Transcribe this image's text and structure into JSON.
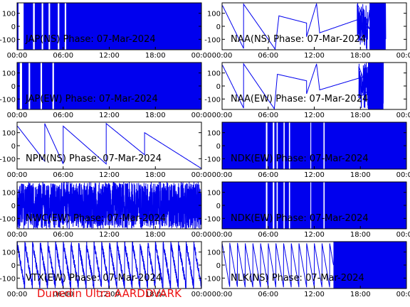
{
  "footer": {
    "text": "Dunedin Ultra AARDDVARK",
    "color": "#ee1111"
  },
  "styles": {
    "trace_color": "#0000ee",
    "frame_color": "#000000",
    "label_color": "#000000"
  },
  "chart_data": [
    {
      "type": "line",
      "title": "JAP(NS) Phase: 07-Mar-2024",
      "ylim": [
        -180,
        180
      ],
      "yticks": [
        100,
        0,
        -100
      ],
      "xticks": [
        "00:00",
        "06:00",
        "12:00",
        "18:00",
        "00:00"
      ],
      "xlim_hours": [
        0,
        24
      ],
      "shape": "saturated",
      "gaps": [
        [
          0.18,
          0.85
        ],
        [
          2.08,
          2.3
        ],
        [
          3.2,
          3.4
        ],
        [
          4.1,
          4.3
        ],
        [
          5.3,
          5.5
        ],
        [
          6.2,
          6.4
        ]
      ]
    },
    {
      "type": "line",
      "title": "NAA(NS) Phase: 07-Mar-2024",
      "ylim": [
        -180,
        180
      ],
      "yticks": [
        100,
        0,
        -100
      ],
      "xticks": [
        "00:00",
        "06:00",
        "12:00",
        "18:00",
        "00:00"
      ],
      "xlim_hours": [
        0,
        24
      ],
      "shape": "sawtooth",
      "ramps": [
        [
          0.05,
          2.8,
          160,
          -170
        ],
        [
          2.8,
          6.9,
          170,
          -175
        ],
        [
          7.4,
          11.0,
          80,
          25
        ],
        [
          11.0,
          12.3,
          -80,
          175
        ],
        [
          12.7,
          17.6,
          -50,
          50
        ],
        [
          17.6,
          19.2,
          170,
          -20
        ]
      ],
      "noisy": [
        [
          17.6,
          19.0
        ],
        [
          19.2,
          21.3
        ]
      ],
      "blocks": [
        [
          19.2,
          21.3
        ]
      ]
    },
    {
      "type": "line",
      "title": "JAP(EW) Phase: 07-Mar-2024",
      "ylim": [
        -180,
        180
      ],
      "yticks": [
        100,
        0,
        -100
      ],
      "xticks": [
        "00:00",
        "06:00",
        "12:00",
        "18:00",
        "00:00"
      ],
      "xlim_hours": [
        0,
        24
      ],
      "shape": "saturated",
      "gaps": [
        [
          0.35,
          0.65
        ],
        [
          1.5,
          1.7
        ],
        [
          3.05,
          3.25
        ],
        [
          4.6,
          4.8
        ]
      ]
    },
    {
      "type": "line",
      "title": "NAA(EW) Phase: 07-Mar-2024",
      "ylim": [
        -180,
        180
      ],
      "yticks": [
        100,
        0,
        -100
      ],
      "xticks": [
        "00:00",
        "06:00",
        "12:00",
        "18:00",
        "00:00"
      ],
      "xlim_hours": [
        0,
        24
      ],
      "shape": "sawtooth",
      "ramps": [
        [
          0.05,
          2.8,
          160,
          -170
        ],
        [
          2.8,
          6.8,
          170,
          -175
        ],
        [
          7.2,
          11.0,
          90,
          40
        ],
        [
          11.0,
          12.3,
          -60,
          170
        ],
        [
          12.7,
          17.8,
          -30,
          60
        ],
        [
          17.8,
          19.0,
          150,
          -40
        ]
      ],
      "noisy": [
        [
          17.8,
          19.0
        ],
        [
          19.0,
          21.0
        ]
      ],
      "blocks": [
        [
          19.0,
          21.0
        ]
      ]
    },
    {
      "type": "line",
      "title": "NPM(NS) Phase: 07-Mar-2024",
      "ylim": [
        -180,
        180
      ],
      "yticks": [
        100,
        0,
        -100
      ],
      "xticks": [
        "00:00",
        "06:00",
        "12:00",
        "18:00",
        "00:00"
      ],
      "xlim_hours": [
        0,
        24
      ],
      "shape": "sawtooth",
      "ramps": [
        [
          0.05,
          3.6,
          150,
          -120
        ],
        [
          3.6,
          6.0,
          170,
          -140
        ],
        [
          6.0,
          11.6,
          150,
          -140
        ],
        [
          11.6,
          16.6,
          170,
          -70
        ],
        [
          16.6,
          24.0,
          100,
          -175
        ]
      ],
      "noisy": [],
      "blocks": []
    },
    {
      "type": "line",
      "title": "NDK(EW) Phase: 07-Mar-2024",
      "ylim": [
        -180,
        180
      ],
      "yticks": [
        100,
        0,
        -100
      ],
      "xticks": [
        "00:00",
        "06:00",
        "12:00",
        "18:00",
        "00:00"
      ],
      "xlim_hours": [
        0,
        24
      ],
      "shape": "saturated",
      "gaps": [
        [
          5.7,
          5.9
        ],
        [
          6.6,
          6.8
        ],
        [
          7.1,
          7.25
        ],
        [
          8.0,
          8.15
        ],
        [
          8.7,
          8.85
        ],
        [
          11.5,
          11.6
        ],
        [
          13.2,
          13.35
        ]
      ]
    },
    {
      "type": "line",
      "title": "NWC(EW) Phase: 07-Mar-2024",
      "ylim": [
        -180,
        180
      ],
      "yticks": [
        100,
        0,
        -100
      ],
      "xticks": [
        "00:00",
        "06:00",
        "12:00",
        "18:00",
        "00:00"
      ],
      "xlim_hours": [
        0,
        24
      ],
      "shape": "dense",
      "period_hours": 0.3
    },
    {
      "type": "line",
      "title": "NDK(EW) Phase: 07-Mar-2024",
      "ylim": [
        -180,
        180
      ],
      "yticks": [
        100,
        0,
        -100
      ],
      "xticks": [
        "00:00",
        "06:00",
        "12:00",
        "18:00",
        "00:00"
      ],
      "xlim_hours": [
        0,
        24
      ],
      "shape": "saturated",
      "gaps": [
        [
          5.7,
          5.9
        ],
        [
          6.6,
          6.8
        ],
        [
          7.1,
          7.25
        ],
        [
          8.0,
          8.15
        ],
        [
          8.7,
          8.85
        ],
        [
          11.5,
          11.6
        ],
        [
          13.2,
          13.35
        ]
      ]
    },
    {
      "type": "line",
      "title": "VTX(EW) Phase: 07-Mar-2024",
      "ylim": [
        -180,
        180
      ],
      "yticks": [
        100,
        0,
        -100
      ],
      "xticks": [
        "00:00",
        "06:00",
        "12:00",
        "18:00",
        "00:00"
      ],
      "xlim_hours": [
        0,
        24
      ],
      "shape": "dense",
      "period_hours": 1.0
    },
    {
      "type": "line",
      "title": "NLK(NS) Phase: 07-Mar-2024",
      "ylim": [
        -180,
        180
      ],
      "yticks": [
        100,
        0,
        -100
      ],
      "xticks": [
        "00:00",
        "06:00",
        "12:00",
        "18:00",
        "00:00"
      ],
      "xlim_hours": [
        0,
        24
      ],
      "shape": "sawtooth_fill",
      "period_hours": 1.0,
      "fill_from": 14.5
    }
  ]
}
